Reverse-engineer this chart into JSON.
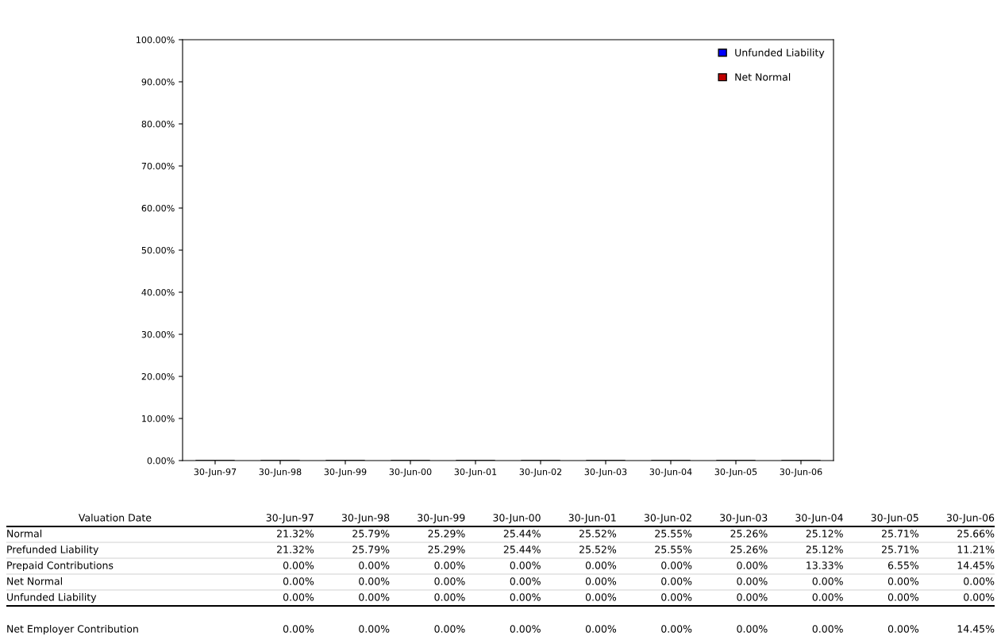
{
  "chart_data": [
    {
      "type": "bar",
      "stacked": true,
      "categories": [
        "30-Jun-97",
        "30-Jun-98",
        "30-Jun-99",
        "30-Jun-00",
        "30-Jun-01",
        "30-Jun-02",
        "30-Jun-03",
        "30-Jun-04",
        "30-Jun-05",
        "30-Jun-06"
      ],
      "series": [
        {
          "name": "Net Normal",
          "color": "#c00000",
          "values": [
            0,
            0,
            0,
            0,
            0,
            0,
            0,
            0,
            0,
            0
          ]
        },
        {
          "name": "Unfunded Liability",
          "color": "#0000ff",
          "values": [
            0,
            0,
            0,
            0,
            0,
            0,
            0,
            0,
            0,
            0
          ]
        }
      ],
      "ylim": [
        0,
        100
      ],
      "yticks": [
        {
          "value": 0,
          "label": "0.00%"
        },
        {
          "value": 10,
          "label": "10.00%"
        },
        {
          "value": 20,
          "label": "20.00%"
        },
        {
          "value": 30,
          "label": "30.00%"
        },
        {
          "value": 40,
          "label": "40.00%"
        },
        {
          "value": 50,
          "label": "50.00%"
        },
        {
          "value": 60,
          "label": "60.00%"
        },
        {
          "value": 70,
          "label": "70.00%"
        },
        {
          "value": 80,
          "label": "80.00%"
        },
        {
          "value": 90,
          "label": "90.00%"
        },
        {
          "value": 100,
          "label": "100.00%"
        }
      ],
      "legend": "top right"
    },
    {
      "type": "other",
      "xlabel": "Valuation Date",
      "categories": [
        "30-Jun-97",
        "30-Jun-98",
        "30-Jun-99",
        "30-Jun-00",
        "30-Jun-01",
        "30-Jun-02",
        "30-Jun-03",
        "30-Jun-04",
        "30-Jun-05",
        "30-Jun-06"
      ],
      "series": [
        {
          "name": "Normal",
          "values": [
            21.32,
            25.79,
            25.29,
            25.44,
            25.52,
            25.55,
            25.26,
            25.12,
            25.71,
            25.66
          ],
          "value_labels": [
            "21.32%",
            "25.79%",
            "25.29%",
            "25.44%",
            "25.52%",
            "25.55%",
            "25.26%",
            "25.12%",
            "25.71%",
            "25.66%"
          ]
        },
        {
          "name": "Prefunded Liability",
          "values": [
            21.32,
            25.79,
            25.29,
            25.44,
            25.52,
            25.55,
            25.26,
            25.12,
            25.71,
            11.21
          ],
          "value_labels": [
            "21.32%",
            "25.79%",
            "25.29%",
            "25.44%",
            "25.52%",
            "25.55%",
            "25.26%",
            "25.12%",
            "25.71%",
            "11.21%"
          ]
        },
        {
          "name": "Prepaid Contributions",
          "values": [
            0,
            0,
            0,
            0,
            0,
            0,
            0,
            13.33,
            6.55,
            14.45
          ],
          "value_labels": [
            "0.00%",
            "0.00%",
            "0.00%",
            "0.00%",
            "0.00%",
            "0.00%",
            "0.00%",
            "13.33%",
            "6.55%",
            "14.45%"
          ]
        },
        {
          "name": "Net Normal",
          "values": [
            0,
            0,
            0,
            0,
            0,
            0,
            0,
            0,
            0,
            0
          ],
          "value_labels": [
            "0.00%",
            "0.00%",
            "0.00%",
            "0.00%",
            "0.00%",
            "0.00%",
            "0.00%",
            "0.00%",
            "0.00%",
            "0.00%"
          ]
        },
        {
          "name": "Unfunded Liability",
          "values": [
            0,
            0,
            0,
            0,
            0,
            0,
            0,
            0,
            0,
            0
          ],
          "value_labels": [
            "0.00%",
            "0.00%",
            "0.00%",
            "0.00%",
            "0.00%",
            "0.00%",
            "0.00%",
            "0.00%",
            "0.00%",
            "0.00%"
          ]
        },
        {
          "name": "Net Employer Contribution",
          "values": [
            0,
            0,
            0,
            0,
            0,
            0,
            0,
            0,
            0,
            14.45
          ],
          "value_labels": [
            "0.00%",
            "0.00%",
            "0.00%",
            "0.00%",
            "0.00%",
            "0.00%",
            "0.00%",
            "0.00%",
            "0.00%",
            "14.45%"
          ]
        }
      ]
    }
  ]
}
